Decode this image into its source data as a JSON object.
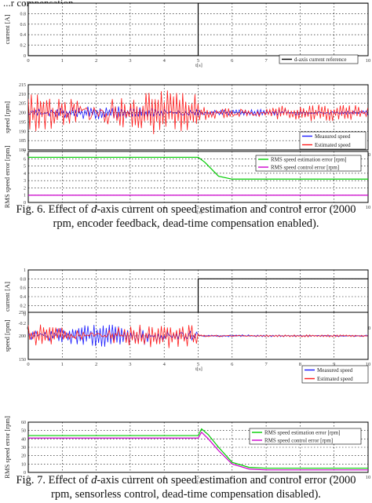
{
  "page": {
    "header_fragment": "...r compensation",
    "captions": [
      {
        "prefix": "Fig. 6. Effect of ",
        "var": "d",
        "rest": "-axis current on speed estimation and control error (2000",
        "line2": "rpm, encoder feedback, dead-time compensation enabled)."
      },
      {
        "prefix": "Fig. 7. Effect of ",
        "var": "d",
        "rest": "-axis current on speed estimation and control error (2000",
        "line2": "rpm, sensorless control, dead-time compensation disabled)."
      }
    ]
  },
  "chart_data": [
    {
      "figure": "Fig. 6",
      "panel": "current",
      "type": "line",
      "ylabel": "current [A]",
      "xlabel": "t[s]",
      "xlim": [
        0,
        10
      ],
      "ylim": [
        0,
        1
      ],
      "xticks": [
        0,
        1,
        2,
        3,
        4,
        5,
        6,
        7,
        8,
        9,
        10
      ],
      "yticks": [
        "0",
        "0.2",
        "0.4",
        "0.6",
        "0.8",
        "1"
      ],
      "series": [
        {
          "name": "d-axis current reference",
          "color": "#000000",
          "x": [
            0,
            5,
            5,
            10
          ],
          "y": [
            0,
            0,
            1,
            1
          ]
        }
      ]
    },
    {
      "figure": "Fig. 6",
      "panel": "speed",
      "type": "line",
      "ylabel": "speed [rpm]",
      "xlabel": "t[s]",
      "xlim": [
        0,
        10
      ],
      "ylim": [
        180,
        215
      ],
      "xticks": [
        0,
        1,
        2,
        3,
        4,
        5,
        6,
        7,
        8,
        9,
        10
      ],
      "yticks": [
        "180",
        "185",
        "190",
        "195",
        "200",
        "205",
        "210",
        "215"
      ],
      "series": [
        {
          "name": "Measured speed",
          "color": "#1a1aff",
          "mean": [
            200,
            200
          ],
          "amplitude": [
            3,
            1.5
          ]
        },
        {
          "name": "Estimated speed",
          "color": "#ff1a1a",
          "mean": [
            200,
            200
          ],
          "amplitude": [
            10,
            4
          ]
        }
      ]
    },
    {
      "figure": "Fig. 6",
      "panel": "rms-error",
      "type": "line",
      "ylabel": "RMS speed error [rpm]",
      "xlabel": "t[s]",
      "xlim": [
        0,
        10
      ],
      "ylim": [
        0,
        7
      ],
      "xticks": [
        0,
        1,
        2,
        3,
        4,
        5,
        6,
        7,
        8,
        9,
        10
      ],
      "yticks": [
        "0",
        "1",
        "2",
        "3",
        "4",
        "5",
        "6",
        "7"
      ],
      "series": [
        {
          "name": "RMS speed estimation error [rpm]",
          "color": "#00cc00",
          "x": [
            0,
            5,
            5.2,
            5.6,
            6,
            10
          ],
          "y": [
            6.2,
            6.2,
            5.5,
            3.6,
            3.2,
            3.2
          ]
        },
        {
          "name": "RMS speed control error [rpm]",
          "color": "#cc00cc",
          "x": [
            0,
            10
          ],
          "y": [
            1,
            1
          ]
        }
      ]
    },
    {
      "figure": "Fig. 7",
      "panel": "current",
      "type": "line",
      "ylabel": "current [A]",
      "xlabel": "t[s]",
      "xlim": [
        0,
        10
      ],
      "ylim": [
        -0.2,
        1
      ],
      "xticks": [
        0,
        1,
        2,
        3,
        4,
        5,
        6,
        7,
        8,
        9,
        10
      ],
      "yticks": [
        "-0.2",
        "0",
        "0.2",
        "0.4",
        "0.6",
        "0.8",
        "1"
      ],
      "series": [
        {
          "name": "d-axis current reference",
          "color": "#000000",
          "x": [
            0,
            5,
            5,
            10
          ],
          "y": [
            0,
            0,
            0.8,
            0.8
          ]
        }
      ]
    },
    {
      "figure": "Fig. 7",
      "panel": "speed",
      "type": "line",
      "ylabel": "speed [rpm]",
      "xlabel": "t[s]",
      "xlim": [
        0,
        10
      ],
      "ylim": [
        150,
        250
      ],
      "xticks": [
        0,
        1,
        2,
        3,
        4,
        5,
        6,
        7,
        8,
        9,
        10
      ],
      "yticks": [
        "150",
        "200",
        "250"
      ],
      "series": [
        {
          "name": "Measured speed",
          "color": "#1a1aff",
          "mean": [
            200,
            200
          ],
          "amplitude": [
            20,
            2
          ]
        },
        {
          "name": "Estimated speed",
          "color": "#ff1a1a",
          "mean": [
            200,
            200
          ],
          "amplitude": [
            22,
            2
          ]
        }
      ]
    },
    {
      "figure": "Fig. 7",
      "panel": "rms-error",
      "type": "line",
      "ylabel": "RMS speed error [rpm]",
      "xlabel": "t[s]",
      "xlim": [
        0,
        10
      ],
      "ylim": [
        0,
        60
      ],
      "xticks": [
        0,
        1,
        2,
        3,
        4,
        5,
        6,
        7,
        8,
        9,
        10
      ],
      "yticks": [
        "0",
        "10",
        "20",
        "30",
        "40",
        "50",
        "60"
      ],
      "series": [
        {
          "name": "RMS speed estimation error [rpm]",
          "color": "#00cc00",
          "x": [
            0,
            5,
            5.1,
            5.3,
            5.6,
            6,
            6.5,
            7,
            10
          ],
          "y": [
            44,
            44,
            52,
            45,
            30,
            12,
            6,
            5,
            5
          ]
        },
        {
          "name": "RMS speed control error [rpm]",
          "color": "#cc00cc",
          "x": [
            0,
            5,
            5.1,
            5.3,
            5.6,
            6,
            6.5,
            7,
            10
          ],
          "y": [
            41,
            41,
            48,
            40,
            26,
            10,
            4,
            3,
            3
          ]
        }
      ]
    }
  ]
}
